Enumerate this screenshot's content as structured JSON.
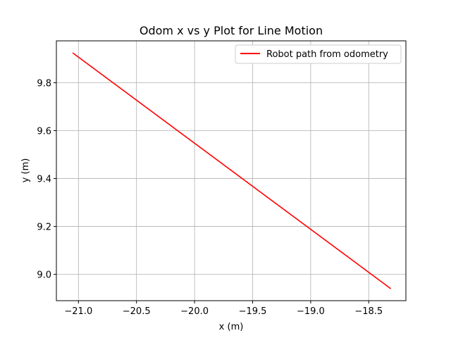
{
  "chart_data": {
    "type": "line",
    "title": "Odom x vs y Plot for Line Motion",
    "xlabel": "x (m)",
    "ylabel": "y (m)",
    "xlim": [
      -21.19,
      -18.18
    ],
    "ylim": [
      8.89,
      9.975
    ],
    "xticks": [
      -21.0,
      -20.5,
      -20.0,
      -19.5,
      -19.0,
      -18.5
    ],
    "xtick_labels": [
      "−21.0",
      "−20.5",
      "−20.0",
      "−19.5",
      "−19.0",
      "−18.5"
    ],
    "yticks": [
      9.0,
      9.2,
      9.4,
      9.6,
      9.8
    ],
    "ytick_labels": [
      "9.0",
      "9.2",
      "9.4",
      "9.6",
      "9.8"
    ],
    "grid": true,
    "legend_position": "top-right",
    "series": [
      {
        "name": "Robot path from odometry",
        "color": "#ff0000",
        "x": [
          -21.05,
          -18.31
        ],
        "y": [
          9.925,
          8.94
        ]
      }
    ]
  }
}
